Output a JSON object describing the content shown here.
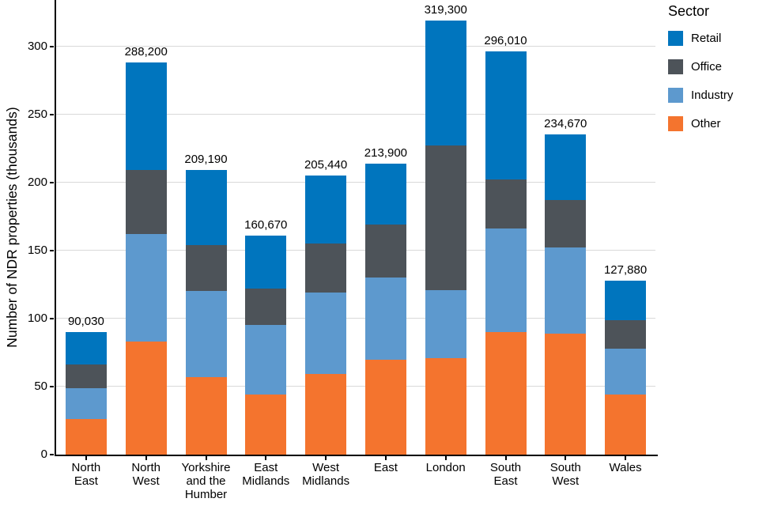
{
  "chart_data": {
    "type": "bar",
    "stacked": true,
    "units": "thousands",
    "ylabel": "Number of NDR properties (thousands)",
    "xlabel": "",
    "legend_title": "Sector",
    "legend_position": "right",
    "grid": "horizontal",
    "ylim": [
      0,
      334
    ],
    "yticks": [
      0,
      50,
      100,
      150,
      200,
      250,
      300
    ],
    "categories": [
      "North East",
      "North West",
      "Yorkshire and the Humber",
      "East Midlands",
      "West Midlands",
      "East",
      "London",
      "South East",
      "South West",
      "Wales"
    ],
    "category_label_lines": [
      [
        "North",
        "East"
      ],
      [
        "North",
        "West"
      ],
      [
        "Yorkshire",
        "and the",
        "Humber"
      ],
      [
        "East",
        "Midlands"
      ],
      [
        "West",
        "Midlands"
      ],
      [
        "East"
      ],
      [
        "London"
      ],
      [
        "South",
        "East"
      ],
      [
        "South",
        "West"
      ],
      [
        "Wales"
      ]
    ],
    "stack_order_bottom_to_top": [
      "Other",
      "Industry",
      "Office",
      "Retail"
    ],
    "series": [
      {
        "name": "Other",
        "color": "#F4742E",
        "values": [
          26,
          83,
          57,
          44,
          59,
          70,
          71,
          90,
          89,
          44
        ]
      },
      {
        "name": "Industry",
        "color": "#5D99CE",
        "values": [
          23,
          79,
          63,
          51,
          60,
          60,
          50,
          76,
          63,
          34
        ]
      },
      {
        "name": "Office",
        "color": "#4D5359",
        "values": [
          17,
          47,
          34,
          27,
          36,
          39,
          106,
          36,
          35,
          21
        ]
      },
      {
        "name": "Retail",
        "color": "#0075BE",
        "values": [
          24,
          79,
          55,
          39,
          50,
          45,
          92,
          94,
          48,
          29
        ]
      }
    ],
    "legend_entries": [
      "Retail",
      "Office",
      "Industry",
      "Other"
    ],
    "totals": [
      {
        "label": "90,030",
        "value": 90.03
      },
      {
        "label": "288,200",
        "value": 288.2
      },
      {
        "label": "209,190",
        "value": 209.19
      },
      {
        "label": "160,670",
        "value": 160.67
      },
      {
        "label": "205,440",
        "value": 205.44
      },
      {
        "label": "213,900",
        "value": 213.9
      },
      {
        "label": "319,300",
        "value": 319.3
      },
      {
        "label": "296,010",
        "value": 296.01
      },
      {
        "label": "234,670",
        "value": 234.67
      },
      {
        "label": "127,880",
        "value": 127.88
      }
    ]
  },
  "colors": {
    "background": "#FFFFFF",
    "axis": "#000000",
    "gridline": "#D9D9D9",
    "text": "#000000"
  }
}
